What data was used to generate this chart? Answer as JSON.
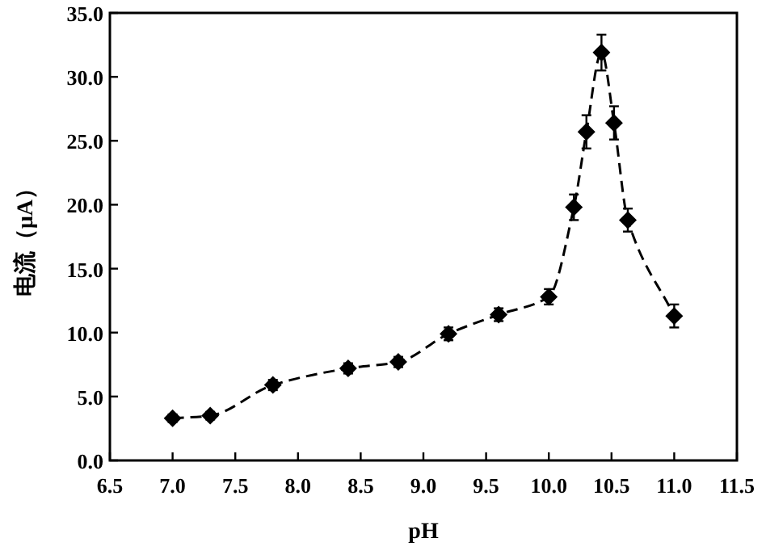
{
  "chart_data": {
    "type": "line",
    "xlabel": "pH",
    "ylabel": "电流（μA）",
    "x": [
      7.0,
      7.3,
      7.8,
      8.4,
      8.8,
      9.2,
      9.6,
      10.0,
      10.2,
      10.3,
      10.42,
      10.52,
      10.63,
      11.0
    ],
    "series": [
      {
        "color": "#000000",
        "values": [
          3.3,
          3.5,
          5.9,
          7.2,
          7.7,
          9.9,
          11.4,
          12.8,
          19.8,
          25.7,
          31.9,
          26.4,
          18.8,
          11.3
        ],
        "errors": [
          0.3,
          0.3,
          0.4,
          0.4,
          0.4,
          0.5,
          0.5,
          0.6,
          1.0,
          1.3,
          1.4,
          1.3,
          0.9,
          0.9
        ]
      }
    ],
    "xlim": [
      6.5,
      11.5
    ],
    "xticks": [
      {
        "value": 6.5,
        "label": "6.5"
      },
      {
        "value": 7,
        "label": "7.0"
      },
      {
        "value": 7.5,
        "label": "7.5"
      },
      {
        "value": 8,
        "label": "8.0"
      },
      {
        "value": 8.5,
        "label": "8.5"
      },
      {
        "value": 9,
        "label": "9.0"
      },
      {
        "value": 9.5,
        "label": "9.5"
      },
      {
        "value": 10,
        "label": "10.0"
      },
      {
        "value": 10.5,
        "label": "10.5"
      },
      {
        "value": 11,
        "label": "11.0"
      },
      {
        "value": 11.5,
        "label": "11.5"
      }
    ],
    "ylim": [
      0,
      35
    ],
    "yticks": [
      {
        "value": 0,
        "label": "0.0"
      },
      {
        "value": 5,
        "label": "5.0"
      },
      {
        "value": 10,
        "label": "10.0"
      },
      {
        "value": 15,
        "label": "15.0"
      },
      {
        "value": 20,
        "label": "20.0"
      },
      {
        "value": 25,
        "label": "25.0"
      },
      {
        "value": 30,
        "label": "30.0"
      },
      {
        "value": 35,
        "label": "35.0"
      }
    ],
    "marker": "diamond",
    "line_style": "dashed"
  }
}
